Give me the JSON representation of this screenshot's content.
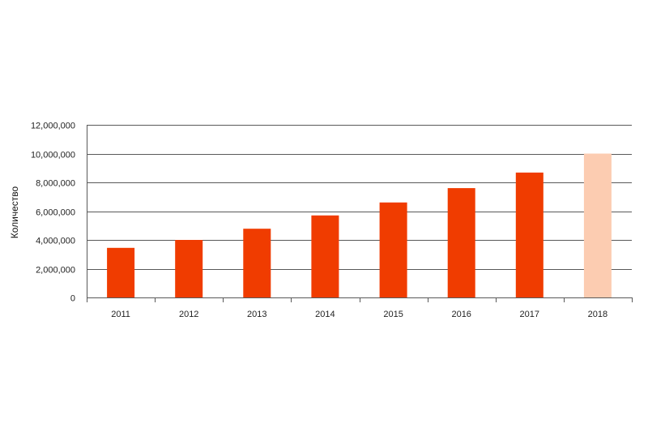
{
  "chart_data": {
    "type": "bar",
    "title": "",
    "xlabel": "",
    "ylabel": "Количество",
    "categories": [
      "2011",
      "2012",
      "2013",
      "2014",
      "2015",
      "2016",
      "2017",
      "2018"
    ],
    "values": [
      3450000,
      4000000,
      4780000,
      5700000,
      6600000,
      7600000,
      8680000,
      10000000
    ],
    "ylim": [
      0,
      12000000
    ],
    "yticks": [
      0,
      2000000,
      4000000,
      6000000,
      8000000,
      10000000,
      12000000
    ],
    "ytick_labels": [
      "0",
      "2,000,000",
      "4,000,000",
      "6,000,000",
      "8,000,000",
      "10,000,000",
      "12,000,000"
    ],
    "grid": true,
    "legend": "none",
    "colors": {
      "actual": "#f03c00",
      "forecast": "#fcccb1"
    },
    "forecast_categories": [
      "2018"
    ]
  }
}
